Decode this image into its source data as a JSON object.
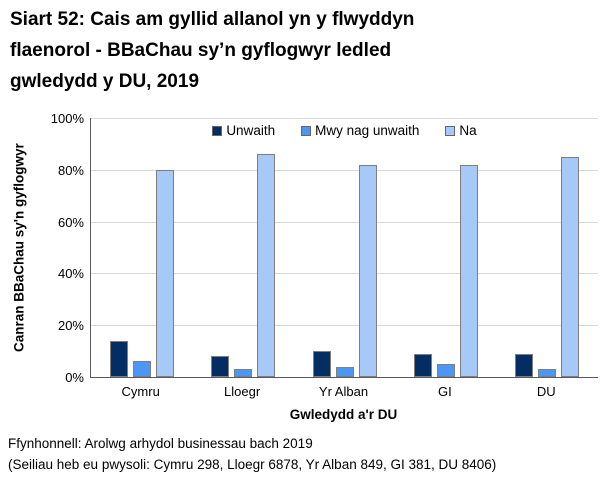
{
  "title": {
    "lines": [
      "Siart 52: Cais am gyllid allanol yn y flwyddyn",
      "flaenorol - BBaChau sy’n gyflogwyr ledled",
      "gwledydd y DU, 2019"
    ]
  },
  "chart_data": {
    "type": "bar",
    "title": "Siart 52: Cais am gyllid allanol yn y flwyddyn flaenorol - BBaChau sy’n gyflogwyr ledled gwledydd y DU, 2019",
    "categories": [
      "Cymru",
      "Lloegr",
      "Yr Alban",
      "GI",
      "DU"
    ],
    "series": [
      {
        "name": "Unwaith",
        "color": "#032d63",
        "values": [
          14,
          8,
          10,
          9,
          9
        ]
      },
      {
        "name": "Mwy nag unwaith",
        "color": "#4c96f5",
        "values": [
          6,
          3,
          4,
          5,
          3
        ]
      },
      {
        "name": "Na",
        "color": "#a7c9f8",
        "values": [
          80,
          86,
          82,
          82,
          85
        ]
      }
    ],
    "xlabel": "Gwledydd a'r DU",
    "ylabel": "Canran BBaChau sy'n gyflogwyr",
    "ylim": [
      0,
      100
    ],
    "ytick_step": 20,
    "yticks": [
      "0%",
      "20%",
      "40%",
      "60%",
      "80%",
      "100%"
    ],
    "grid": true,
    "legend_position": "top-center-inside",
    "bar_border_color": "#7f7f7f",
    "gridline_color": "#d9d9d9",
    "axis_color": "#595959"
  },
  "footnotes": {
    "source": "Ffynhonnell: Arolwg arhydol businessau bach 2019",
    "bases": "(Seiliau heb eu pwysoli: Cymru 298, Lloegr 6878, Yr Alban 849, GI 381, DU 8406)"
  }
}
